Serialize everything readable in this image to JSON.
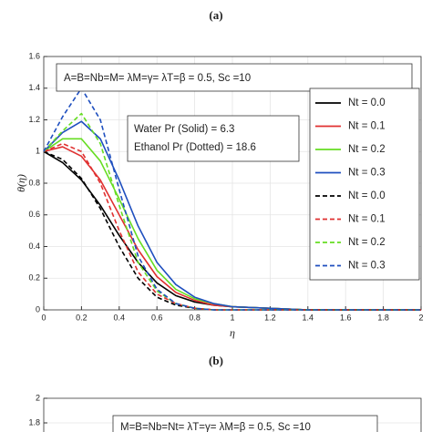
{
  "chart_data": [
    {
      "type": "line",
      "title": "(a)",
      "xlabel": "η",
      "ylabel": "θ(η)",
      "annotations": [
        "A=B=Nb=M= λM=γ= λT=β = 0.5, Sc =10",
        "Water Pr (Solid) = 6.3",
        "Ethanol Pr (Dotted) = 18.6"
      ],
      "x": [
        0,
        0.1,
        0.2,
        0.3,
        0.4,
        0.5,
        0.6,
        0.7,
        0.8,
        0.9,
        1.0,
        1.2,
        1.4,
        1.6,
        1.8,
        2.0
      ],
      "xlim": [
        0,
        2
      ],
      "xticks": [
        0,
        0.2,
        0.4,
        0.6,
        0.8,
        1,
        1.2,
        1.4,
        1.6,
        1.8,
        2
      ],
      "ylim": [
        0,
        1.6
      ],
      "yticks": [
        0,
        0.2,
        0.4,
        0.6,
        0.8,
        1,
        1.2,
        1.4,
        1.6
      ],
      "grid": true,
      "series": [
        {
          "name": "Nt = 0.0",
          "color": "#000000",
          "style": "solid",
          "values": [
            1,
            0.93,
            0.82,
            0.66,
            0.47,
            0.3,
            0.17,
            0.09,
            0.05,
            0.03,
            0.02,
            0.01,
            0,
            0,
            0,
            0
          ]
        },
        {
          "name": "Nt = 0.1",
          "color": "#e03030",
          "style": "solid",
          "values": [
            1,
            1.03,
            0.97,
            0.82,
            0.6,
            0.38,
            0.21,
            0.11,
            0.06,
            0.03,
            0.02,
            0.01,
            0,
            0,
            0,
            0
          ]
        },
        {
          "name": "Nt = 0.2",
          "color": "#66dd22",
          "style": "solid",
          "values": [
            1,
            1.08,
            1.08,
            0.94,
            0.7,
            0.45,
            0.25,
            0.13,
            0.07,
            0.04,
            0.02,
            0.01,
            0,
            0,
            0,
            0
          ]
        },
        {
          "name": "Nt = 0.3",
          "color": "#1f4fbf",
          "style": "solid",
          "values": [
            1,
            1.12,
            1.19,
            1.08,
            0.82,
            0.53,
            0.3,
            0.16,
            0.08,
            0.04,
            0.02,
            0.01,
            0,
            0,
            0,
            0
          ]
        },
        {
          "name": "Nt = 0.0",
          "color": "#000000",
          "style": "dashed",
          "values": [
            1,
            0.95,
            0.83,
            0.64,
            0.4,
            0.2,
            0.08,
            0.03,
            0.01,
            0,
            0,
            0,
            0,
            0,
            0,
            0
          ]
        },
        {
          "name": "Nt = 0.1",
          "color": "#e03030",
          "style": "dashed",
          "values": [
            1,
            1.05,
            1.0,
            0.8,
            0.5,
            0.24,
            0.1,
            0.04,
            0.01,
            0,
            0,
            0,
            0,
            0,
            0,
            0
          ]
        },
        {
          "name": "Nt = 0.2",
          "color": "#66dd22",
          "style": "dashed",
          "values": [
            1,
            1.13,
            1.24,
            1.05,
            0.66,
            0.3,
            0.12,
            0.04,
            0.01,
            0,
            0,
            0,
            0,
            0,
            0,
            0
          ]
        },
        {
          "name": "Nt = 0.3",
          "color": "#1f4fbf",
          "style": "dashed",
          "values": [
            1,
            1.22,
            1.4,
            1.2,
            0.76,
            0.34,
            0.13,
            0.04,
            0.01,
            0,
            0,
            0,
            0,
            0,
            0,
            0
          ]
        }
      ]
    },
    {
      "type": "line",
      "title": "(b)",
      "annotations": [
        "M=B=Nb=Nt= λT=γ= λM=β = 0.5, Sc =10"
      ],
      "ylim": [
        0,
        2
      ],
      "yticks": [
        2,
        1.8
      ],
      "grid": true
    }
  ]
}
